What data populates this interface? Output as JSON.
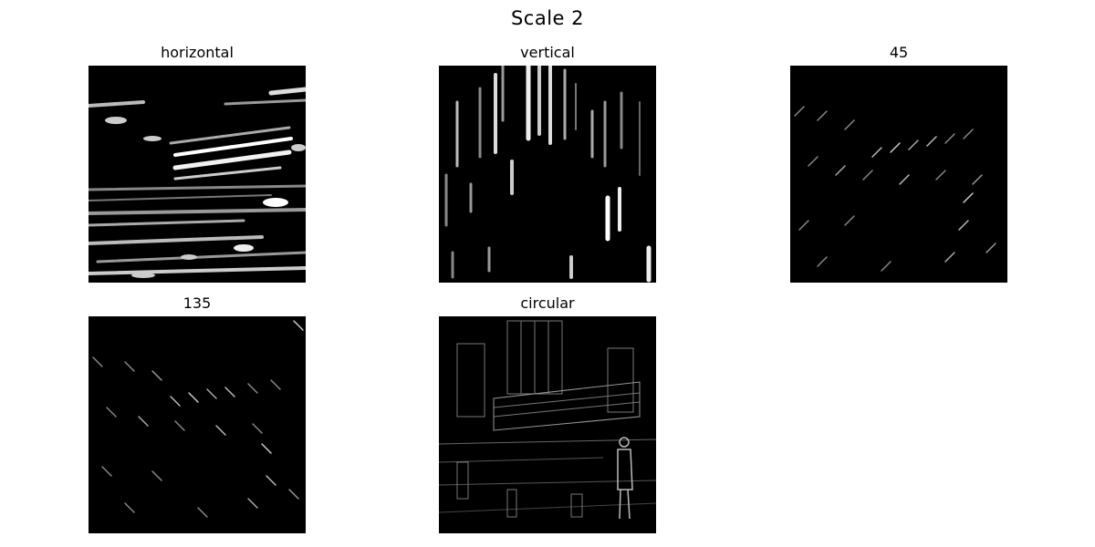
{
  "figure": {
    "title": "Scale 2",
    "panels": [
      {
        "id": "horizontal",
        "title": "horizontal",
        "image": "horizontal-edge-response"
      },
      {
        "id": "vertical",
        "title": "vertical",
        "image": "vertical-edge-response"
      },
      {
        "id": "diag45",
        "title": "45",
        "image": "45-degree-edge-response"
      },
      {
        "id": "diag135",
        "title": "135",
        "image": "135-degree-edge-response"
      },
      {
        "id": "circular",
        "title": "circular",
        "image": "circular-edge-response"
      }
    ]
  }
}
